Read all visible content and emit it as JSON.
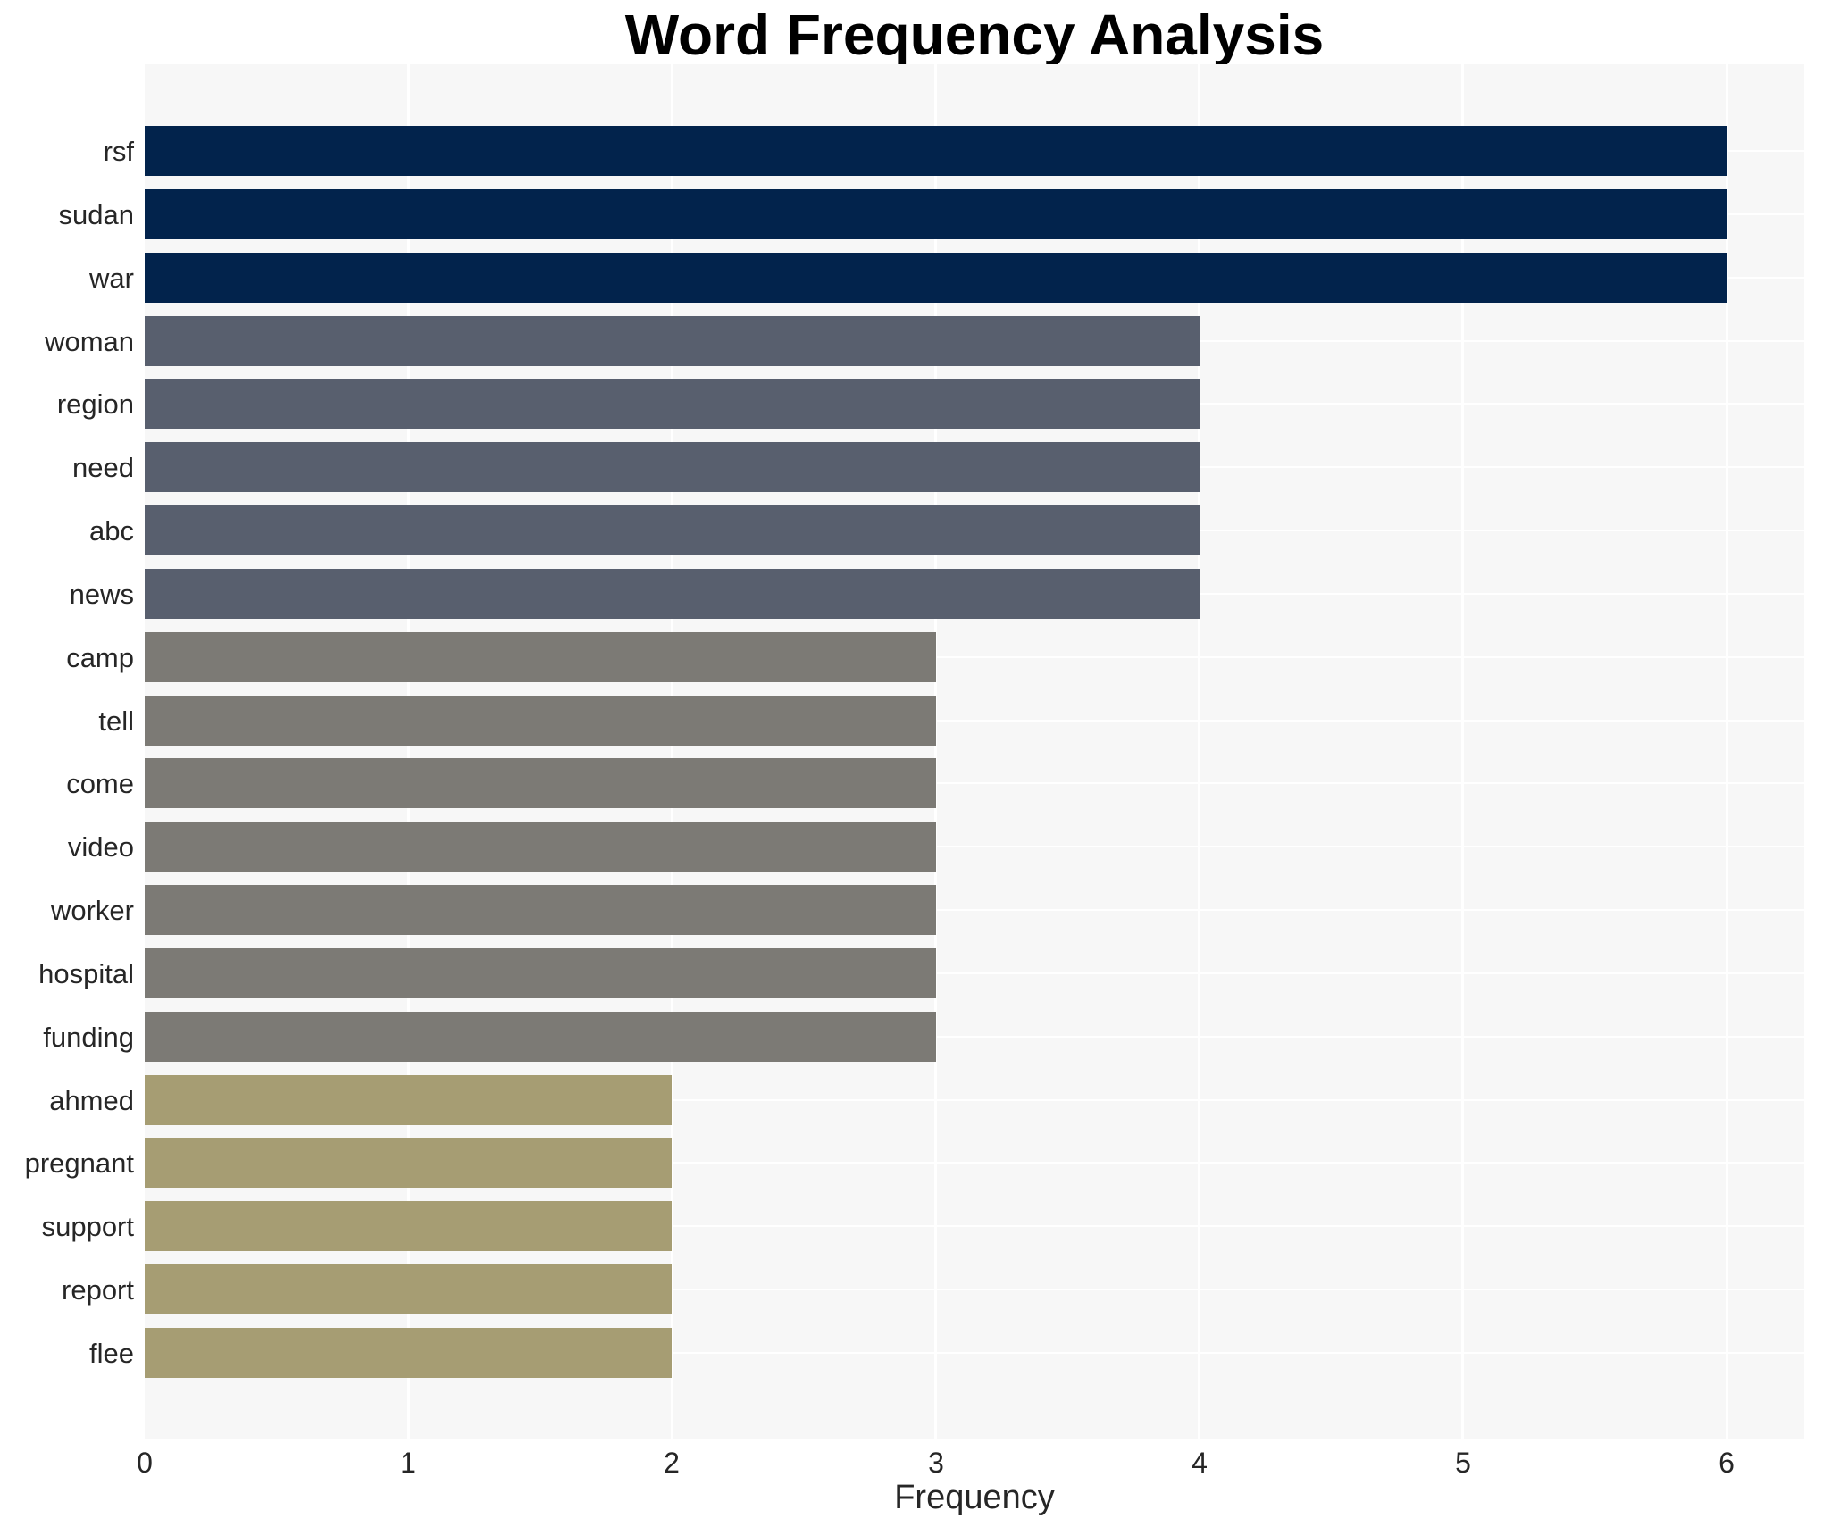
{
  "chart_data": {
    "type": "bar",
    "orientation": "horizontal",
    "title": "Word Frequency Analysis",
    "xlabel": "Frequency",
    "ylabel": "",
    "categories": [
      "rsf",
      "sudan",
      "war",
      "woman",
      "region",
      "need",
      "abc",
      "news",
      "camp",
      "tell",
      "come",
      "video",
      "worker",
      "hospital",
      "funding",
      "ahmed",
      "pregnant",
      "support",
      "report",
      "flee"
    ],
    "values": [
      6,
      6,
      6,
      4,
      4,
      4,
      4,
      4,
      3,
      3,
      3,
      3,
      3,
      3,
      3,
      2,
      2,
      2,
      2,
      2
    ],
    "xticks": [
      "0",
      "1",
      "2",
      "3",
      "4",
      "5",
      "6"
    ],
    "xlim": [
      0,
      6.29
    ],
    "grid": "white major gridlines; vertical at integer x, horizontal at category centers",
    "legend": "none",
    "colors": {
      "bar_by_value": {
        "6": "#02234c",
        "4": "#585f6e",
        "3": "#7c7a75",
        "2": "#a69d73"
      },
      "panel_bg": "#f7f7f7",
      "grid": "#ffffff",
      "title_text": "#000000",
      "tick_text": "#262626",
      "page_bg": "#ffffff"
    }
  }
}
